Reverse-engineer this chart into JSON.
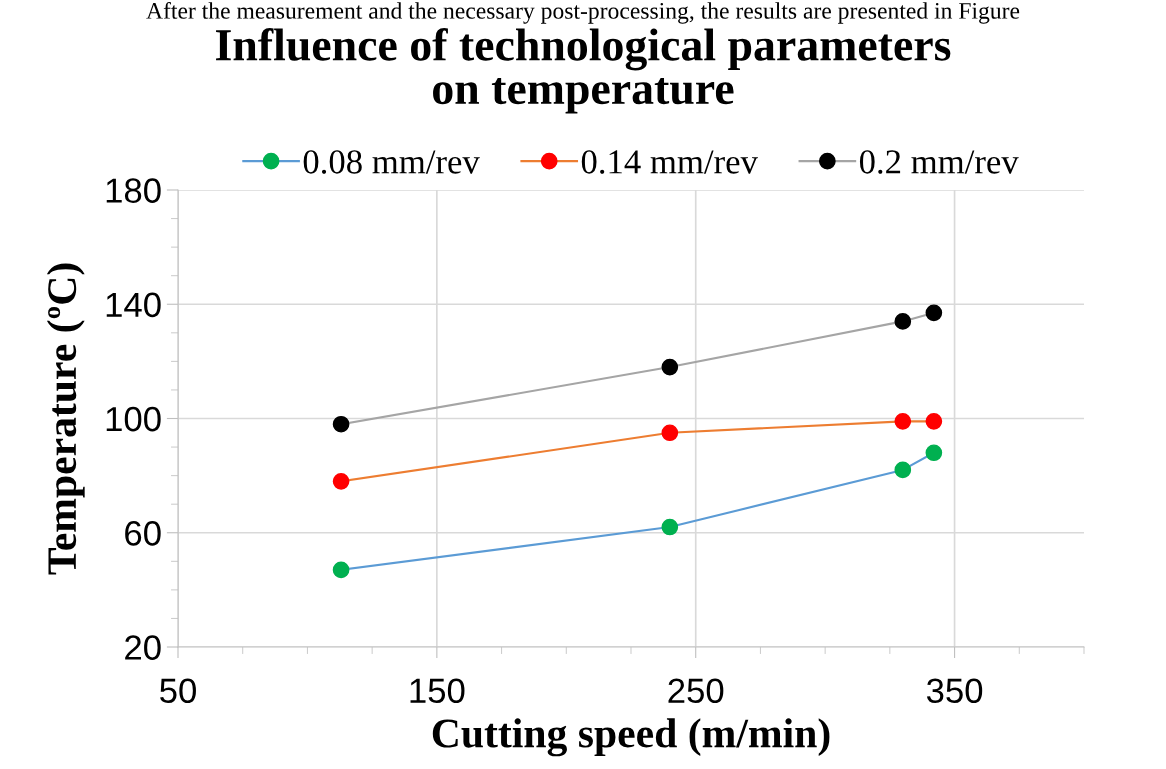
{
  "chart_data": {
    "type": "line",
    "title": "Influence of technological parameters\non temperature",
    "xlabel": "Cutting speed (m/min)",
    "ylabel": "Temperature (ºC)",
    "annotations": [
      "After the measurement and the necessary post-processing, the results are presented in Figure"
    ],
    "x": [
      113,
      240,
      330,
      342
    ],
    "series": [
      {
        "name": "0.08 mm/rev",
        "color": "#5b9bd5",
        "colors": [
          "#00b050",
          "#00b050",
          "#00b050",
          "#00b050"
        ],
        "values": [
          47,
          62,
          82,
          88
        ]
      },
      {
        "name": "0.14 mm/rev",
        "color": "#ed7d31",
        "colors": [
          "#ff0000",
          "#ff0000",
          "#ff0000",
          "#ff0000"
        ],
        "values": [
          78,
          95,
          99,
          99
        ]
      },
      {
        "name": "0.2 mm/rev",
        "color": "#a5a5a5",
        "colors": [
          "#000000",
          "#000000",
          "#000000",
          "#000000"
        ],
        "values": [
          98,
          118,
          134,
          137
        ]
      }
    ],
    "xlim": [
      50,
      400
    ],
    "xticks": [
      50,
      150,
      250,
      350
    ],
    "ylim": [
      20,
      180
    ],
    "yticks": [
      20,
      60,
      100,
      140,
      180
    ],
    "grid": true,
    "legend": "top",
    "marker": "circle",
    "line_style": "solid"
  }
}
